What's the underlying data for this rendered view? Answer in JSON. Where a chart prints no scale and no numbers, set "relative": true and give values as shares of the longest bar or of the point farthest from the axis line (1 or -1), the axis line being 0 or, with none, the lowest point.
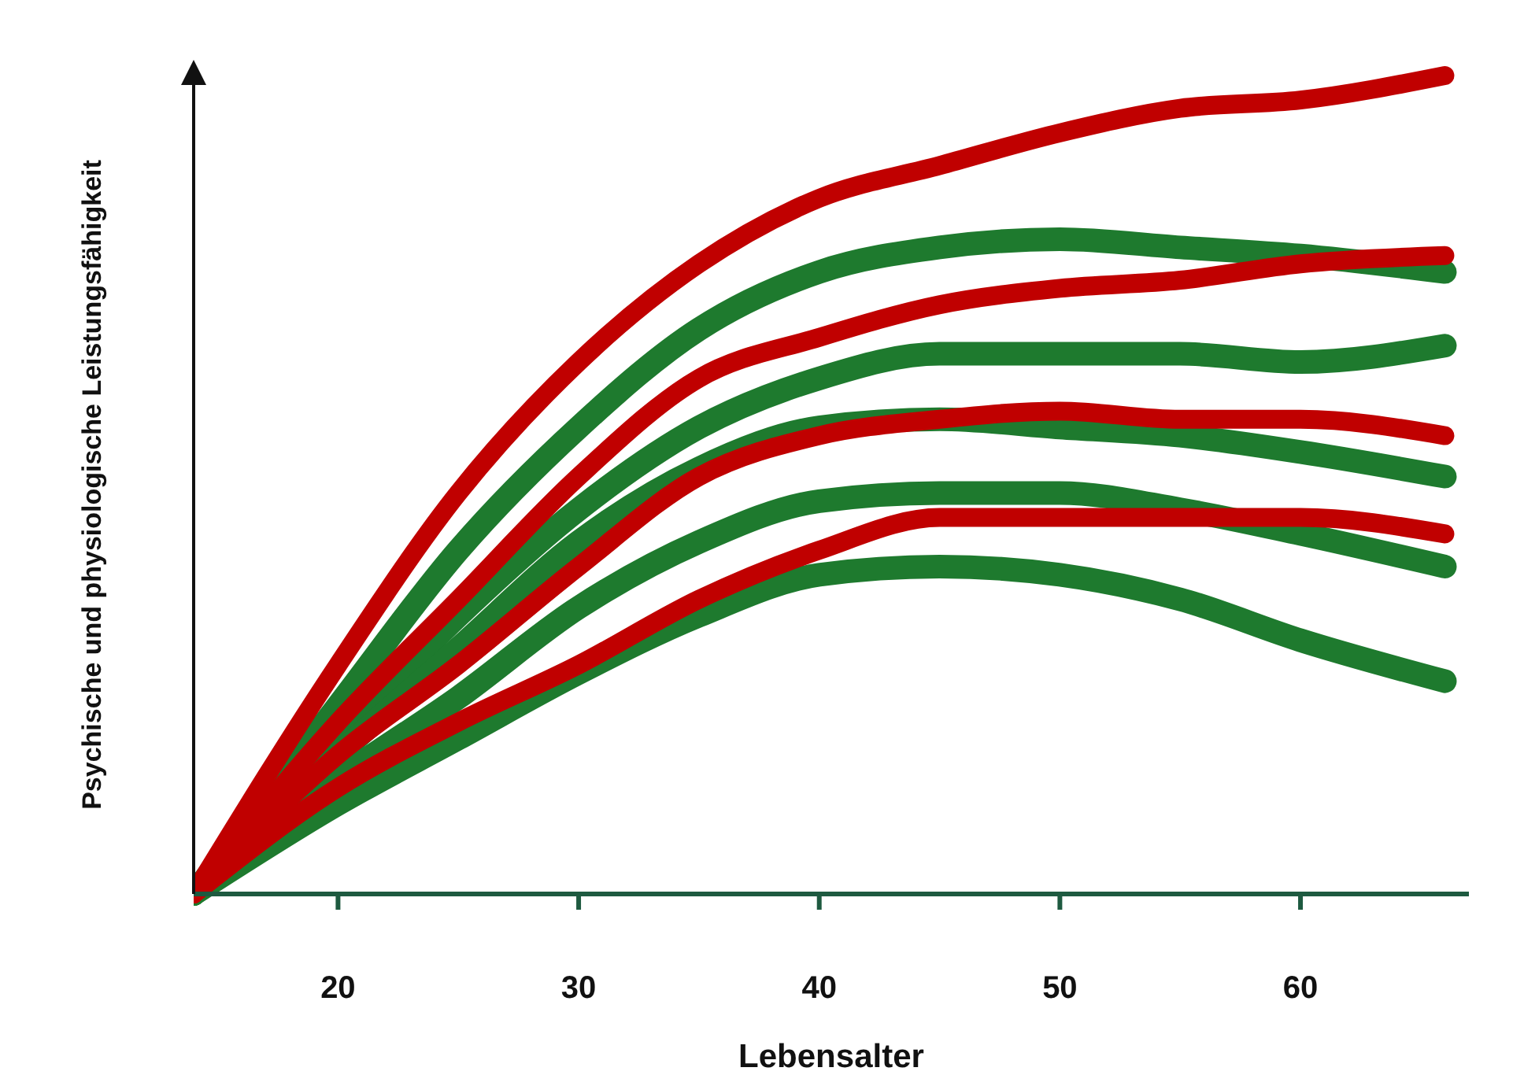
{
  "chart_data": {
    "type": "line",
    "relative": true,
    "xlabel": "Lebensalter",
    "ylabel": "Psychische und physiologische Leistungsfähigkeit",
    "x": [
      14,
      20,
      25,
      30,
      35,
      40,
      45,
      50,
      55,
      60,
      66
    ],
    "xlim": [
      14,
      67
    ],
    "xticks": [
      20,
      30,
      40,
      50,
      60
    ],
    "grid": false,
    "legend": false,
    "marker": "none",
    "line_style": "solid",
    "series": [
      {
        "color": "#1e7a2e",
        "values": [
          0,
          0.23,
          0.42,
          0.57,
          0.69,
          0.76,
          0.79,
          0.8,
          0.79,
          0.78,
          0.76
        ]
      },
      {
        "color": "#1e7a2e",
        "values": [
          0,
          0.19,
          0.34,
          0.47,
          0.57,
          0.63,
          0.66,
          0.66,
          0.66,
          0.65,
          0.67
        ]
      },
      {
        "color": "#1e7a2e",
        "values": [
          0,
          0.17,
          0.3,
          0.43,
          0.52,
          0.57,
          0.58,
          0.57,
          0.56,
          0.54,
          0.51
        ]
      },
      {
        "color": "#1e7a2e",
        "values": [
          0,
          0.14,
          0.24,
          0.35,
          0.43,
          0.48,
          0.49,
          0.49,
          0.47,
          0.44,
          0.4
        ]
      },
      {
        "color": "#1e7a2e",
        "values": [
          0,
          0.11,
          0.19,
          0.27,
          0.34,
          0.39,
          0.4,
          0.39,
          0.36,
          0.31,
          0.26
        ]
      },
      {
        "color": "#c00000",
        "values": [
          0,
          0.28,
          0.49,
          0.65,
          0.77,
          0.85,
          0.89,
          0.93,
          0.96,
          0.97,
          1
        ]
      },
      {
        "color": "#c00000",
        "values": [
          0,
          0.21,
          0.36,
          0.51,
          0.63,
          0.68,
          0.72,
          0.74,
          0.75,
          0.77,
          0.78
        ]
      },
      {
        "color": "#c00000",
        "values": [
          0,
          0.17,
          0.28,
          0.4,
          0.51,
          0.56,
          0.58,
          0.59,
          0.58,
          0.58,
          0.56
        ]
      },
      {
        "color": "#c00000",
        "values": [
          0,
          0.13,
          0.21,
          0.28,
          0.36,
          0.42,
          0.46,
          0.46,
          0.46,
          0.46,
          0.44
        ]
      }
    ]
  }
}
